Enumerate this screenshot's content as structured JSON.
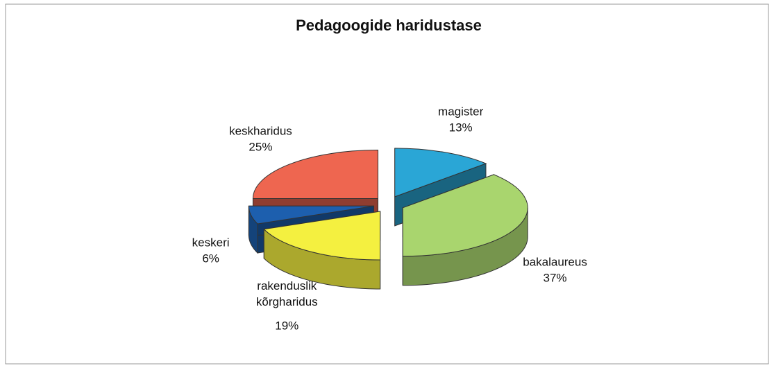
{
  "chart_data": {
    "type": "pie3d",
    "title": "Pedagoogide haridustase",
    "categories": [
      "magister",
      "bakalaureus",
      "rakenduslik kõrgharidus",
      "keskeri",
      "keskharidus"
    ],
    "values": [
      13,
      37,
      19,
      6,
      25
    ],
    "value_labels": [
      "13%",
      "37%",
      "19%",
      "6%",
      "25%"
    ],
    "colors": [
      "#2aa6d6",
      "#a9d56e",
      "#f4f040",
      "#1d5fae",
      "#ee6650"
    ]
  }
}
